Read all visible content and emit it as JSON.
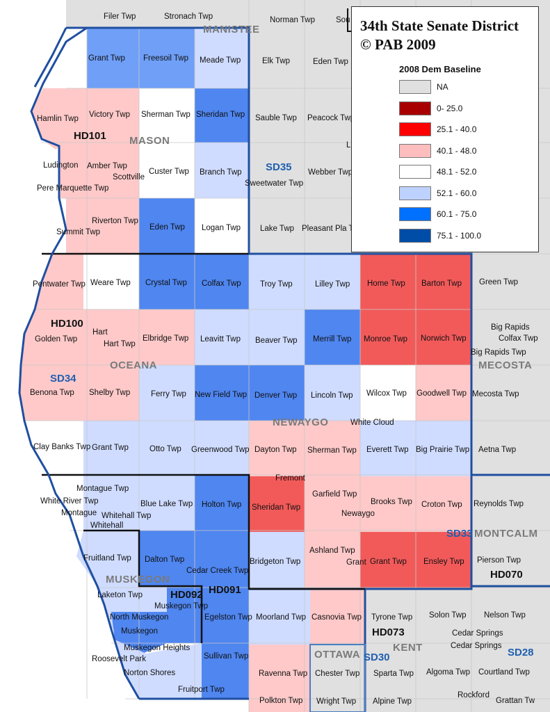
{
  "legend": {
    "title_line1": "34th State Senate District",
    "title_line2": "© PAB 2009",
    "subtitle": "2008 Dem Baseline",
    "classes": [
      {
        "label": "NA",
        "color": "#e0e0e0"
      },
      {
        "label": "0- 25.0",
        "color": "#a80000"
      },
      {
        "label": "25.1 - 40.0",
        "color": "#ff0000"
      },
      {
        "label": "40.1 - 48.0",
        "color": "#ffbebe"
      },
      {
        "label": "48.1 - 52.0",
        "color": "#ffffff"
      },
      {
        "label": "52.1 - 60.0",
        "color": "#bed2ff"
      },
      {
        "label": "60.1 - 75.0",
        "color": "#0070ff"
      },
      {
        "label": "75.1 - 100.0",
        "color": "#004da8"
      }
    ]
  },
  "counties": [
    "MANISTEE",
    "MASON",
    "OCEANA",
    "NEWAYGO",
    "MECOSTA",
    "MONTCALM",
    "MUSKEGON",
    "OTTAWA",
    "KENT"
  ],
  "districts": {
    "house": [
      "HD101",
      "HD100",
      "HD092",
      "HD091",
      "HD073",
      "HD070"
    ],
    "senate": [
      "SD35",
      "SD34",
      "SD33",
      "SD30",
      "SD28"
    ]
  },
  "townships": [
    "Filer Twp",
    "Stronach Twp",
    "Norman Twp",
    "Sou",
    "Grant Twp",
    "Freesoil Twp",
    "Meade Twp",
    "Elk Twp",
    "Eden Twp",
    "Hamlin Twp",
    "Victory Twp",
    "Sherman Twp",
    "Sheridan Twp",
    "Sauble Twp",
    "Peacock Twp",
    "L",
    "Ludington",
    "Amber Twp",
    "Custer Twp",
    "Branch Twp",
    "Webber Twp",
    "Scottville",
    "Pere Marquette Twp",
    "Sweetwater Twp",
    "Riverton Twp",
    "Summit Twp",
    "Eden Twp",
    "Logan Twp",
    "Lake Twp",
    "Pleasant Pla Tw",
    "Pentwater Twp",
    "Weare Twp",
    "Crystal Twp",
    "Colfax Twp",
    "Troy Twp",
    "Lilley Twp",
    "Home Twp",
    "Barton Twp",
    "Green Twp",
    "Hart",
    "Golden Twp",
    "Hart Twp",
    "Elbridge Twp",
    "Leavitt Twp",
    "Beaver Twp",
    "Merrill Twp",
    "Monroe Twp",
    "Norwich Twp",
    "Big Rapids",
    "Colfax Twp",
    "Big Rapids Twp",
    "Benona Twp",
    "Shelby Twp",
    "Ferry Twp",
    "New Field Twp",
    "Denver Twp",
    "Lincoln Twp",
    "Wilcox Twp",
    "Goodwell Twp",
    "Mecosta Twp",
    "White Cloud",
    "Clay Banks Twp",
    "Grant Twp",
    "Otto Twp",
    "Greenwood Twp",
    "Dayton Twp",
    "Sherman Twp",
    "Everett Twp",
    "Big Prairie Twp",
    "Aetna Twp",
    "Fremont",
    "Montague Twp",
    "White River Twp",
    "Montague",
    "Blue Lake Twp",
    "Whitehall Twp",
    "Whitehall",
    "Holton Twp",
    "Sheridan Twp",
    "Garfield Twp",
    "Brooks Twp",
    "Newaygo",
    "Croton Twp",
    "Reynolds Twp",
    "Fruitland Twp",
    "Dalton Twp",
    "Cedar Creek Twp",
    "Bridgeton Twp",
    "Ashland Twp",
    "Grant",
    "Grant Twp",
    "Ensley Twp",
    "Pierson Twp",
    "Laketon Twp",
    "Muskegon Twp",
    "North Muskegon",
    "Egelston Twp",
    "Moorland Twp",
    "Casnovia Twp",
    "Tyrone Twp",
    "Solon Twp",
    "Nelson Twp",
    "Muskegon",
    "Muskegon Heights",
    "Roosevelt Park",
    "Sullivan Twp",
    "Cedar Springs",
    "Cedar Springs",
    "Norton Shores",
    "Ravenna Twp",
    "Chester Twp",
    "Sparta Twp",
    "Algoma Twp",
    "Courtland Twp",
    "Fruitport Twp",
    "Polkton Twp",
    "Wright Twp",
    "Alpine Twp",
    "Rockford",
    "Grattan Tw"
  ]
}
